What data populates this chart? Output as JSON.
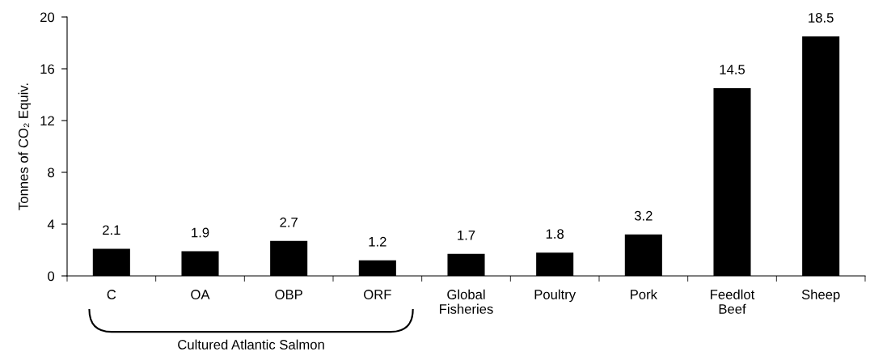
{
  "chart_data": {
    "type": "bar",
    "ylabel": "Tonnes of CO₂ Equiv.",
    "categories": [
      "C",
      "OA",
      "OBP",
      "ORF",
      "Global\nFisheries",
      "Poultry",
      "Pork",
      "Feedlot\nBeef",
      "Sheep"
    ],
    "values": [
      2.1,
      1.9,
      2.7,
      1.2,
      1.7,
      1.8,
      3.2,
      14.5,
      18.5
    ],
    "color": "#000000",
    "ylim": [
      0,
      20
    ],
    "yticks": [
      0,
      4,
      8,
      12,
      16,
      20
    ],
    "grid": false,
    "legend": false,
    "data_labels": true,
    "annotations": [
      "Cultured Atlantic Salmon"
    ]
  }
}
